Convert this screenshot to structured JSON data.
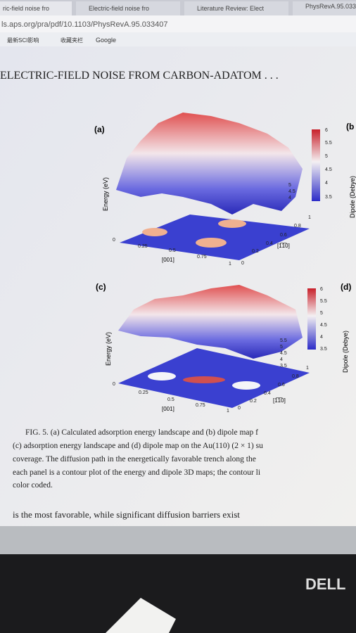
{
  "browser": {
    "tabs": [
      "ric-field noise fro",
      "Electric-field noise fro",
      "Literature Review: Elect",
      "PhysRevA.95.033"
    ],
    "url": "ls.aps.org/pra/pdf/10.1103/PhysRevA.95.033407",
    "bookmarks": [
      "最新SCI影响",
      "收藏夹栏",
      "Google"
    ]
  },
  "paper": {
    "running_header": "ELECTRIC-FIELD NOISE FROM CARBON-ADATOM . . .",
    "panels": [
      {
        "label": "(a)",
        "z_label": "Energy (eV)",
        "colorbar_ticks": [
          "6",
          "5.5",
          "5",
          "4.5",
          "4",
          "3.5"
        ],
        "z_ticks": [
          "5",
          "4.5",
          "4"
        ],
        "x_ticks": [
          "0",
          "0.25",
          "0.5",
          "0.75",
          "1"
        ],
        "x_label": "[001]",
        "y_ticks": [
          "0",
          "0.2",
          "0.4",
          "0.6",
          "0.8",
          "1"
        ],
        "y_label": "[1̅1̅0]"
      },
      {
        "label": "(b",
        "z_label": "Dipole (Debye)"
      },
      {
        "label": "(c)",
        "z_label": "Energy (eV)",
        "colorbar_ticks": [
          "6",
          "5.5",
          "5",
          "4.5",
          "4",
          "3.5"
        ],
        "z_ticks": [
          "5.5",
          "5",
          "4.5",
          "4",
          "3.5"
        ],
        "x_ticks": [
          "0",
          "0.25",
          "0.5",
          "0.75",
          "1"
        ],
        "x_label": "[001]",
        "y_ticks": [
          "0",
          "0.2",
          "0.4",
          "0.6",
          "0.8",
          "1"
        ],
        "y_label": "[1̅1̅0]"
      },
      {
        "label": "(d)",
        "z_label": "Dipole (Debye)"
      }
    ],
    "caption": [
      "FIG. 5. (a) Calculated adsorption energy landscape and (b) dipole map f",
      "(c) adsorption energy landscape and (d) dipole map on the Au(110) (2 × 1) su",
      "coverage. The diffusion path in the energetically favorable trench along the",
      "each panel is a contour plot of the energy and dipole 3D maps; the contour li",
      "color coded."
    ],
    "body": "is the most favorable, while significant diffusion barriers exist"
  },
  "monitor": {
    "brand": "DELL"
  }
}
